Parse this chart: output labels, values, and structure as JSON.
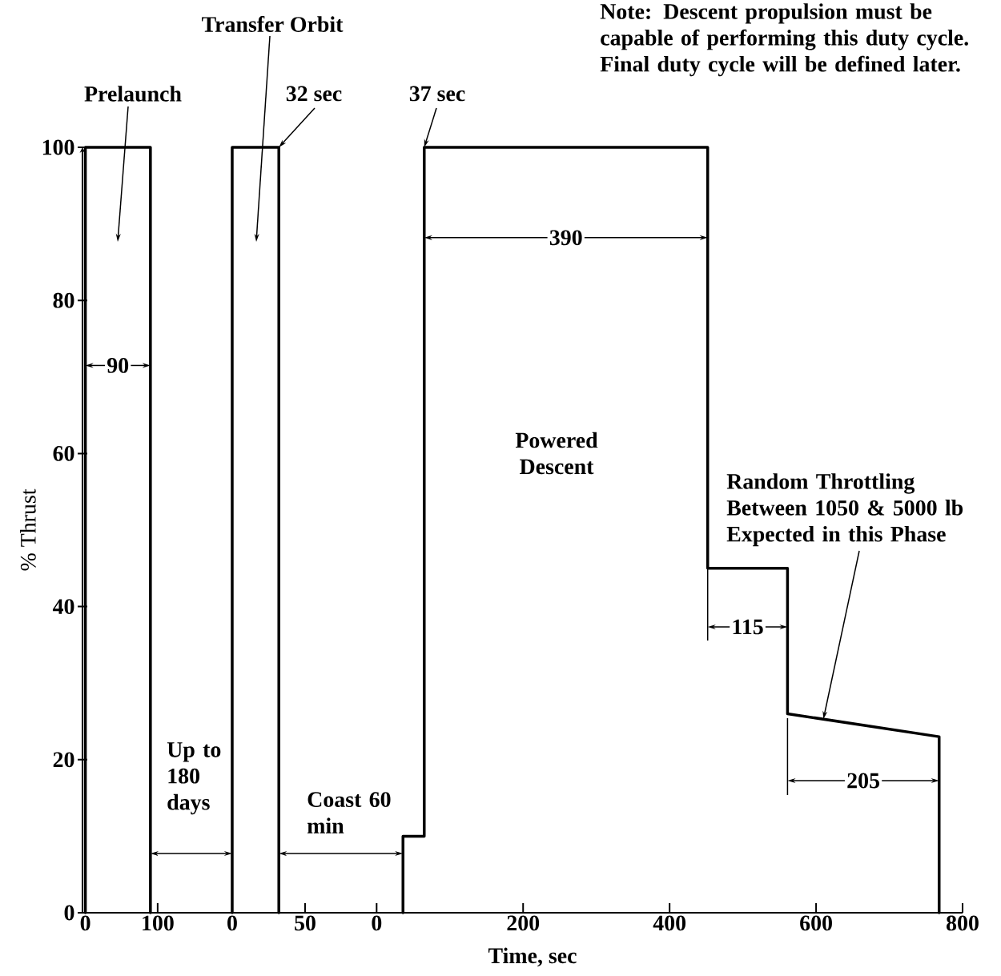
{
  "chart_data": [
    {
      "type": "line",
      "ylabel": "% Thrust",
      "x": [
        0,
        0,
        90,
        90
      ],
      "values": [
        0,
        100,
        100,
        0
      ],
      "color": "#000000",
      "xlim": [
        -4,
        150
      ],
      "xticks": [
        0,
        100
      ],
      "ylim": [
        0,
        100
      ],
      "yticks": [
        0,
        20,
        40,
        60,
        80,
        100
      ],
      "annotations": [
        "Prelaunch",
        {
          "text": "90",
          "x": 0,
          "y": 71.5
        },
        "Up to 180 days"
      ]
    },
    {
      "type": "line",
      "x": [
        0,
        0,
        32,
        32
      ],
      "values": [
        0,
        100,
        100,
        0
      ],
      "color": "#000000",
      "xlim": [
        -28,
        72
      ],
      "xticks": [
        0,
        50
      ],
      "ylim": [
        0,
        100
      ],
      "tick_labels": "x",
      "annotations": [
        "Transfer Orbit",
        {
          "text": "32 sec",
          "x": 32,
          "y": 100
        },
        "Coast 60 min"
      ]
    },
    {
      "type": "line",
      "xlabel": "Time, sec",
      "x": [
        36,
        36,
        65,
        65,
        452,
        452,
        561,
        561,
        768,
        768
      ],
      "values": [
        0,
        10,
        10,
        100,
        100,
        45,
        45,
        26,
        23,
        0
      ],
      "color": "#000000",
      "xlim": [
        -55,
        800
      ],
      "xticks": [
        0,
        200,
        400,
        600,
        800
      ],
      "ylim": [
        0,
        100
      ],
      "tick_labels": "x",
      "annotations": [
        {
          "text": "37 sec",
          "x": 65,
          "y": 100
        },
        {
          "text": "390",
          "x": 65,
          "y": 88.2
        },
        "Powered Descent",
        {
          "text": "115",
          "x": 452,
          "y": 45
        },
        "205",
        {
          "text": "Random Throttling Between 1050 & 5000 lb Expected in this Phase",
          "x": 610,
          "y": 25.3
        },
        "Note: Descent propulsion must be capable of performing this duty cycle. Final duty cycle will be defined later."
      ]
    }
  ]
}
